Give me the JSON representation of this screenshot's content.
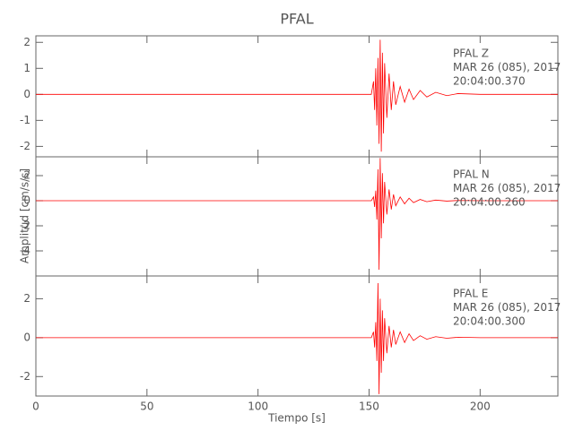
{
  "chart_data": [
    {
      "type": "line",
      "title": "PFAL",
      "annotations": [
        "PFAL   Z",
        "MAR 26 (085), 2017",
        "20:04:00.370"
      ],
      "x": [
        0,
        100,
        151,
        152,
        152.5,
        153,
        153.5,
        154,
        154.5,
        155,
        155.5,
        156,
        156.5,
        157,
        158,
        159,
        160,
        161,
        162,
        164,
        166,
        168,
        170,
        173,
        176,
        180,
        185,
        190,
        200,
        235
      ],
      "series": [
        {
          "color": "#ff0000",
          "values": [
            0,
            0,
            0,
            0.5,
            -0.6,
            1.0,
            -1.2,
            1.4,
            -1.9,
            2.1,
            -2.2,
            1.6,
            -1.5,
            1.2,
            -0.9,
            0.8,
            -0.6,
            0.5,
            -0.4,
            0.3,
            -0.3,
            0.2,
            -0.2,
            0.15,
            -0.1,
            0.08,
            -0.05,
            0.03,
            0,
            0
          ]
        }
      ],
      "xlim": [
        0,
        235
      ],
      "xticks": [
        0,
        50,
        100,
        150,
        200
      ],
      "ylim": [
        -2.4,
        2.25
      ],
      "yticks": [
        -2,
        -1,
        0,
        1,
        2
      ]
    },
    {
      "type": "line",
      "ylabel": "Amplitud [cm/s/s]",
      "annotations": [
        "PFAL   N",
        "MAR 26 (085), 2017",
        "20:04:00.260"
      ],
      "x": [
        0,
        100,
        151,
        152,
        152.5,
        153,
        153.5,
        154,
        154.5,
        155,
        155.5,
        156,
        156.5,
        157,
        158,
        159,
        160,
        161,
        162,
        164,
        166,
        168,
        170,
        173,
        176,
        180,
        185,
        190,
        200,
        235
      ],
      "series": [
        {
          "color": "#ff0000",
          "values": [
            0,
            0,
            0,
            0.3,
            -0.5,
            0.8,
            -1.5,
            2.5,
            -5.5,
            3.4,
            -3,
            2.2,
            -1.8,
            1.5,
            -1.1,
            0.9,
            -0.7,
            0.5,
            -0.4,
            0.3,
            -0.25,
            0.2,
            -0.15,
            0.1,
            -0.08,
            0.05,
            -0.03,
            0.02,
            0,
            0
          ]
        }
      ],
      "xlim": [
        0,
        235
      ],
      "xticks": [
        0,
        50,
        100,
        150,
        200
      ],
      "ylim": [
        -6,
        3.5
      ],
      "yticks": [
        -4,
        -2,
        0,
        2
      ]
    },
    {
      "type": "line",
      "xlabel": "Tiempo [s]",
      "annotations": [
        "PFAL   E",
        "MAR 26 (085), 2017",
        "20:04:00.300"
      ],
      "x": [
        0,
        100,
        151,
        152,
        152.5,
        153,
        153.5,
        154,
        154.5,
        155,
        155.5,
        156,
        156.5,
        157,
        158,
        159,
        160,
        161,
        162,
        164,
        166,
        168,
        170,
        173,
        176,
        180,
        185,
        190,
        200,
        235
      ],
      "series": [
        {
          "color": "#ff0000",
          "values": [
            0,
            0,
            0,
            0.3,
            -0.5,
            0.8,
            -1.2,
            2.8,
            -2.9,
            2.0,
            -1.8,
            1.4,
            -1.2,
            1.0,
            -0.8,
            0.6,
            -0.5,
            0.4,
            -0.35,
            0.3,
            -0.25,
            0.2,
            -0.15,
            0.1,
            -0.08,
            0.05,
            -0.03,
            0.02,
            0,
            0
          ]
        }
      ],
      "xlim": [
        0,
        235
      ],
      "xticks": [
        0,
        50,
        100,
        150,
        200
      ],
      "ylim": [
        -3,
        3.17
      ],
      "yticks": [
        -2,
        0,
        2
      ]
    }
  ]
}
